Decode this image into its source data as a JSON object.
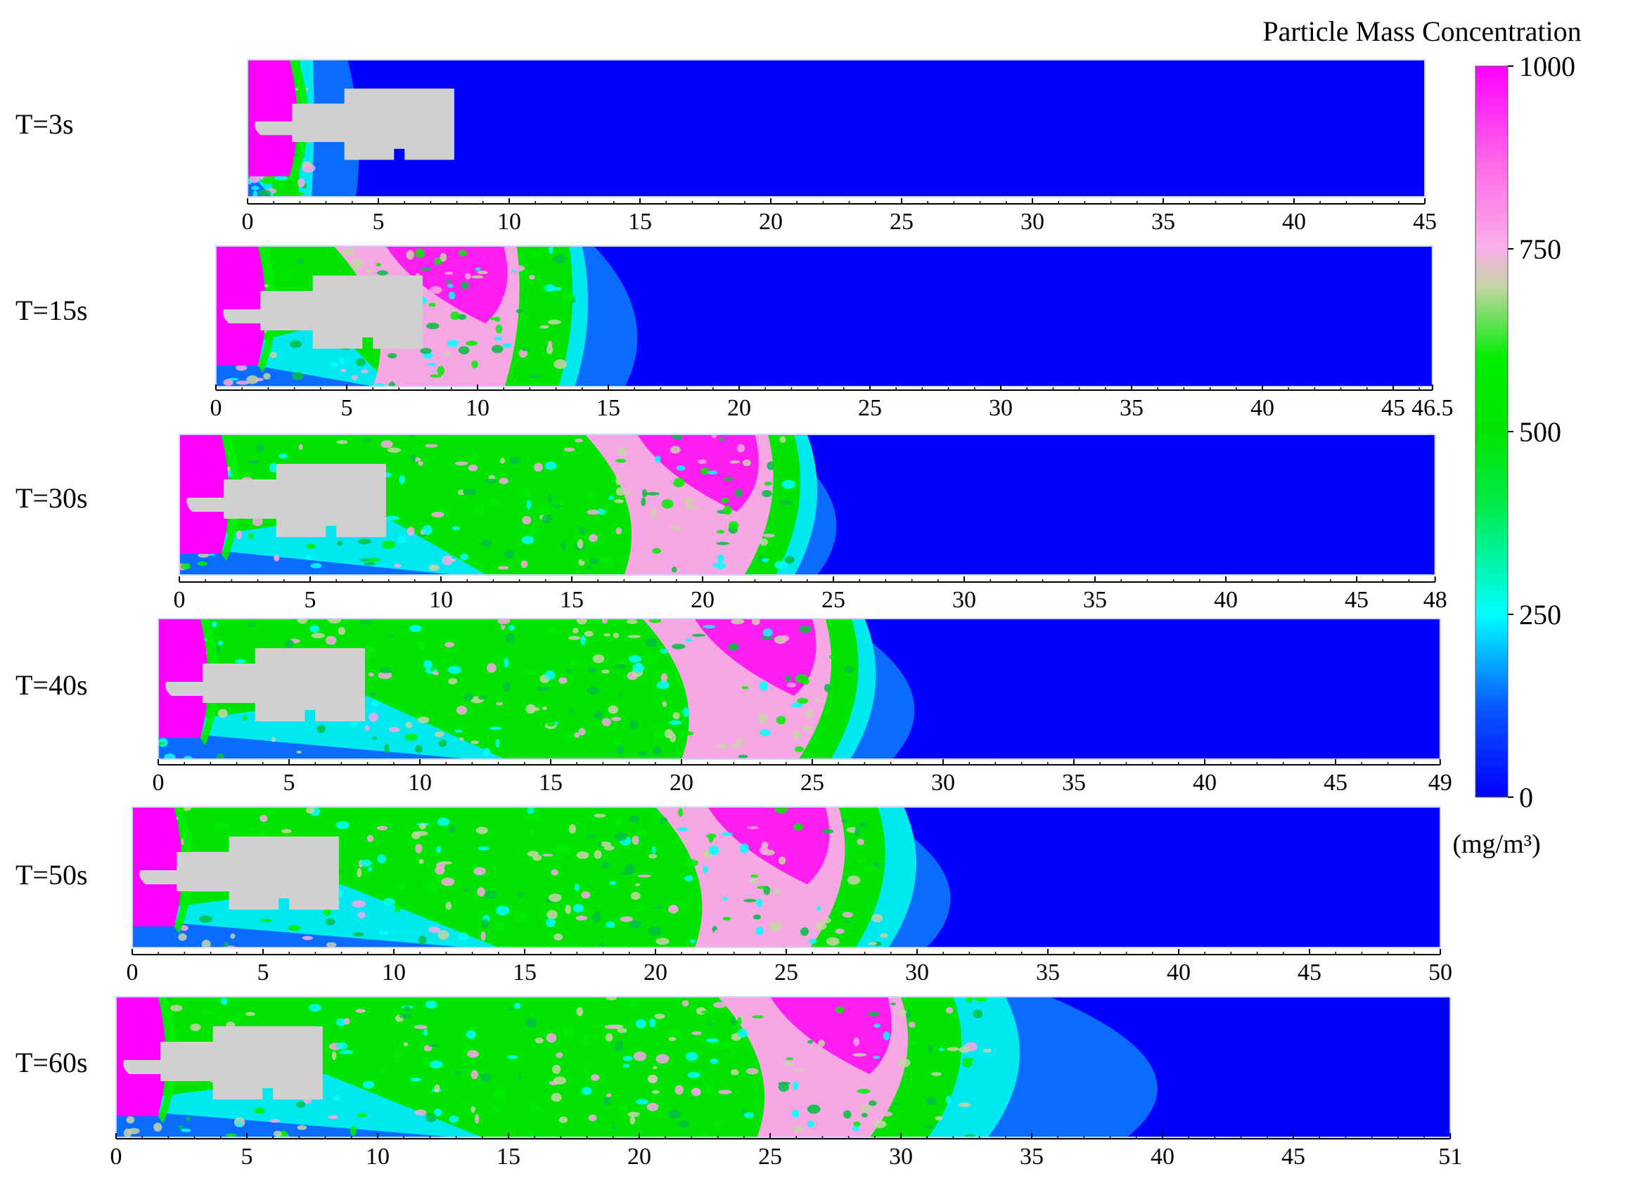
{
  "colorbar": {
    "title": "Particle Mass Concentration",
    "unit": "(mg/m³)",
    "ticks": [
      1000,
      750,
      500,
      250,
      0
    ],
    "stops": [
      {
        "value": 0,
        "color": "#0000ff"
      },
      {
        "value": 120,
        "color": "#0a55ff"
      },
      {
        "value": 250,
        "color": "#00ffff"
      },
      {
        "value": 400,
        "color": "#00ea4a"
      },
      {
        "value": 500,
        "color": "#00e400"
      },
      {
        "value": 600,
        "color": "#00ee00"
      },
      {
        "value": 700,
        "color": "#c8d4a8"
      },
      {
        "value": 750,
        "color": "#f8b0e8"
      },
      {
        "value": 870,
        "color": "#ff66e8"
      },
      {
        "value": 1000,
        "color": "#ff00ff"
      }
    ]
  },
  "chart_data": {
    "type": "heatmap",
    "panels": [
      {
        "label": "T=3s",
        "time_s": 3,
        "x_max": 45,
        "ticks": [
          "0",
          "5",
          "10",
          "15",
          "20",
          "25",
          "30",
          "35",
          "40",
          "45"
        ],
        "front": {
          "magenta": 1.5,
          "green": 2.0,
          "cyan": 2.5,
          "lightblue": 4.5
        }
      },
      {
        "label": "T=15s",
        "time_s": 15,
        "x_max": 46.5,
        "ticks": [
          "0",
          "5",
          "10",
          "15",
          "20",
          "25",
          "30",
          "35",
          "40",
          "45",
          "46.5"
        ],
        "front": {
          "magenta": 11.5,
          "green": 13.5,
          "cyan": 14.0,
          "lightblue": 17.0
        }
      },
      {
        "label": "T=30s",
        "time_s": 30,
        "x_max": 48,
        "ticks": [
          "0",
          "5",
          "10",
          "15",
          "20",
          "25",
          "30",
          "35",
          "40",
          "45",
          "48"
        ],
        "front": {
          "magenta": 22.5,
          "green": 23.5,
          "cyan": 24.0,
          "lightblue": 26.5
        }
      },
      {
        "label": "T=40s",
        "time_s": 40,
        "x_max": 49,
        "ticks": [
          "0",
          "5",
          "10",
          "15",
          "20",
          "25",
          "30",
          "35",
          "40",
          "45",
          "49"
        ],
        "front": {
          "magenta": 25.5,
          "green": 26.5,
          "cyan": 27.0,
          "lightblue": 30.5
        }
      },
      {
        "label": "T=50s",
        "time_s": 50,
        "x_max": 50,
        "ticks": [
          "0",
          "5",
          "10",
          "15",
          "20",
          "25",
          "30",
          "35",
          "40",
          "45",
          "50"
        ],
        "front": {
          "magenta": 27.0,
          "green": 28.5,
          "cyan": 29.5,
          "lightblue": 33.0
        }
      },
      {
        "label": "T=60s",
        "time_s": 60,
        "x_max": 51,
        "ticks": [
          "0",
          "5",
          "10",
          "15",
          "20",
          "25",
          "30",
          "35",
          "40",
          "45",
          "51"
        ],
        "front": {
          "magenta": 30.0,
          "green": 32.0,
          "cyan": 34.0,
          "lightblue": 42.0
        }
      }
    ]
  }
}
